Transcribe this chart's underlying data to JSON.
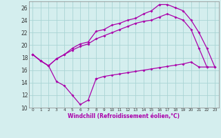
{
  "bg_color": "#d4eeee",
  "grid_color": "#aad4d4",
  "line_color": "#aa00aa",
  "xlabel": "Windchill (Refroidissement éolien,°C)",
  "xlim": [
    -0.5,
    23.5
  ],
  "ylim": [
    10,
    27
  ],
  "yticks": [
    10,
    12,
    14,
    16,
    18,
    20,
    22,
    24,
    26
  ],
  "xticks": [
    0,
    1,
    2,
    3,
    4,
    5,
    6,
    7,
    8,
    9,
    10,
    11,
    12,
    13,
    14,
    15,
    16,
    17,
    18,
    19,
    20,
    21,
    22,
    23
  ],
  "line_dip_x": [
    0,
    1,
    2,
    3,
    4,
    5,
    6,
    7,
    8
  ],
  "line_dip_y": [
    18.5,
    17.5,
    16.7,
    14.2,
    13.5,
    12.0,
    10.5,
    11.2,
    14.6
  ],
  "line_top_x": [
    0,
    1,
    2,
    3,
    4,
    5,
    6,
    7,
    8,
    9,
    10,
    11,
    12,
    13,
    14,
    15,
    16,
    17,
    18,
    19,
    20,
    21,
    22,
    23
  ],
  "line_top_y": [
    18.5,
    17.5,
    16.7,
    17.8,
    18.5,
    19.5,
    20.2,
    20.5,
    22.2,
    22.5,
    23.2,
    23.5,
    24.0,
    24.3,
    25.0,
    25.5,
    26.5,
    26.5,
    26.0,
    25.5,
    24.0,
    22.0,
    19.5,
    16.5
  ],
  "line_mid_x": [
    0,
    1,
    2,
    3,
    4,
    5,
    6,
    7,
    8,
    9,
    10,
    11,
    12,
    13,
    14,
    15,
    16,
    17,
    18,
    19,
    20,
    21,
    22
  ],
  "line_mid_y": [
    18.5,
    17.5,
    16.7,
    17.8,
    18.5,
    19.2,
    19.8,
    20.2,
    21.0,
    21.5,
    22.0,
    22.5,
    23.0,
    23.5,
    23.8,
    24.0,
    24.5,
    25.0,
    24.5,
    24.0,
    22.5,
    19.5,
    16.5
  ],
  "line_flat_x": [
    8,
    9,
    10,
    11,
    12,
    13,
    14,
    15,
    16,
    17,
    18,
    19,
    20,
    21,
    22,
    23
  ],
  "line_flat_y": [
    14.6,
    15.0,
    15.2,
    15.4,
    15.6,
    15.8,
    16.0,
    16.2,
    16.4,
    16.6,
    16.8,
    17.0,
    17.3,
    16.5,
    16.5,
    16.5
  ]
}
